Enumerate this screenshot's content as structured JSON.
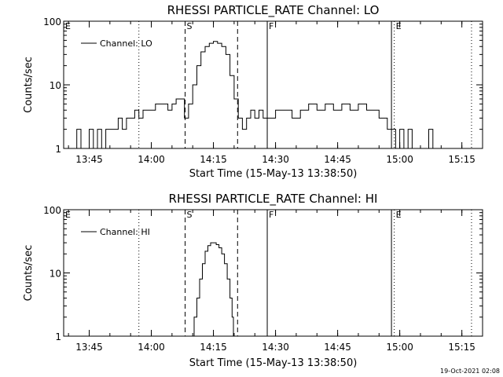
{
  "stamp": "19-Oct-2021 02:08",
  "chart_data": [
    {
      "type": "line",
      "title": "RHESSI PARTICLE_RATE Channel: LO",
      "xlabel": "Start Time (15-May-13 13:38:50)",
      "ylabel": "Counts/sec",
      "yscale": "log",
      "ylim": [
        1,
        100
      ],
      "yticks": [
        "1",
        "10",
        "100"
      ],
      "xlim": [
        "13:38:50",
        "15:20:00"
      ],
      "xticks": [
        "13:45",
        "14:00",
        "14:15",
        "14:30",
        "14:45",
        "15:00",
        "15:15"
      ],
      "legend": "top-left",
      "series": [
        {
          "name": "Channel: LO",
          "x": [
            "13:38:50",
            "13:40:00",
            "13:41:00",
            "13:42:00",
            "13:43:00",
            "13:44:00",
            "13:45:00",
            "13:46:00",
            "13:47:00",
            "13:48:00",
            "13:49:00",
            "13:50:00",
            "13:51:00",
            "13:52:00",
            "13:53:00",
            "13:54:00",
            "13:55:00",
            "13:56:00",
            "13:57:00",
            "13:58:00",
            "13:59:00",
            "14:00:00",
            "14:01:00",
            "14:02:00",
            "14:03:00",
            "14:04:00",
            "14:05:00",
            "14:06:00",
            "14:07:00",
            "14:08:00",
            "14:09:00",
            "14:10:00",
            "14:11:00",
            "14:12:00",
            "14:13:00",
            "14:14:00",
            "14:15:00",
            "14:16:00",
            "14:17:00",
            "14:18:00",
            "14:19:00",
            "14:20:00",
            "14:21:00",
            "14:22:00",
            "14:23:00",
            "14:24:00",
            "14:25:00",
            "14:26:00",
            "14:27:00",
            "14:28:00",
            "14:30:00",
            "14:32:00",
            "14:34:00",
            "14:36:00",
            "14:38:00",
            "14:40:00",
            "14:42:00",
            "14:44:00",
            "14:46:00",
            "14:48:00",
            "14:50:00",
            "14:52:00",
            "14:54:00",
            "14:55:00",
            "14:56:00",
            "14:57:00",
            "14:58:00",
            "14:59:00",
            "15:00:00",
            "15:01:00",
            "15:02:00",
            "15:03:00",
            "15:04:00",
            "15:05:00",
            "15:06:00",
            "15:07:00",
            "15:08:00",
            "15:09:00",
            "15:10:00"
          ],
          "values": [
            1,
            1,
            1,
            2,
            1,
            1,
            2,
            1,
            2,
            1,
            2,
            2,
            2,
            3,
            2,
            3,
            3,
            4,
            3,
            4,
            4,
            4,
            5,
            5,
            5,
            4,
            5,
            6,
            6,
            3,
            5,
            10,
            20,
            33,
            40,
            45,
            48,
            45,
            40,
            30,
            14,
            6,
            3,
            2,
            3,
            4,
            3,
            4,
            3,
            3,
            4,
            4,
            3,
            4,
            5,
            4,
            5,
            4,
            5,
            4,
            5,
            4,
            4,
            3,
            3,
            2,
            2,
            1,
            2,
            1,
            2,
            1,
            1,
            1,
            1,
            2,
            1,
            1,
            1
          ]
        }
      ],
      "markers": [
        {
          "label": "E",
          "time": "13:38:50",
          "style": "dotted"
        },
        {
          "label": "",
          "time": "13:57:00",
          "style": "dotted"
        },
        {
          "label": "S",
          "time": "14:08:10",
          "style": "dashed"
        },
        {
          "label": "",
          "time": "14:20:50",
          "style": "dashed"
        },
        {
          "label": "F",
          "time": "14:28:00",
          "style": "solid"
        },
        {
          "label": "",
          "time": "14:58:00",
          "style": "solid"
        },
        {
          "label": "E",
          "time": "14:58:40",
          "style": "dotted"
        },
        {
          "label": "",
          "time": "15:17:20",
          "style": "dotted"
        }
      ]
    },
    {
      "type": "line",
      "title": "RHESSI PARTICLE_RATE Channel: HI",
      "xlabel": "Start Time (15-May-13 13:38:50)",
      "ylabel": "Counts/sec",
      "yscale": "log",
      "ylim": [
        1,
        100
      ],
      "yticks": [
        "1",
        "10",
        "100"
      ],
      "xlim": [
        "13:38:50",
        "15:20:00"
      ],
      "xticks": [
        "13:45",
        "14:00",
        "14:15",
        "14:30",
        "14:45",
        "15:00",
        "15:15"
      ],
      "legend": "top-left",
      "series": [
        {
          "name": "Channel: HI",
          "x": [
            "14:09:40",
            "14:10:20",
            "14:11:00",
            "14:11:40",
            "14:12:20",
            "14:13:00",
            "14:13:40",
            "14:14:20",
            "14:15:00",
            "14:15:40",
            "14:16:20",
            "14:17:00",
            "14:17:40",
            "14:18:20",
            "14:19:00",
            "14:19:30",
            "14:19:50"
          ],
          "values": [
            1,
            2,
            4,
            8,
            14,
            22,
            27,
            30,
            30,
            28,
            25,
            20,
            14,
            8,
            4,
            2,
            1
          ]
        }
      ],
      "markers": [
        {
          "label": "E",
          "time": "13:38:50",
          "style": "dotted"
        },
        {
          "label": "",
          "time": "13:57:00",
          "style": "dotted"
        },
        {
          "label": "S",
          "time": "14:08:10",
          "style": "dashed"
        },
        {
          "label": "",
          "time": "14:20:50",
          "style": "dashed"
        },
        {
          "label": "F",
          "time": "14:28:00",
          "style": "solid"
        },
        {
          "label": "",
          "time": "14:58:00",
          "style": "solid"
        },
        {
          "label": "E",
          "time": "14:58:40",
          "style": "dotted"
        },
        {
          "label": "",
          "time": "15:17:20",
          "style": "dotted"
        }
      ]
    }
  ]
}
